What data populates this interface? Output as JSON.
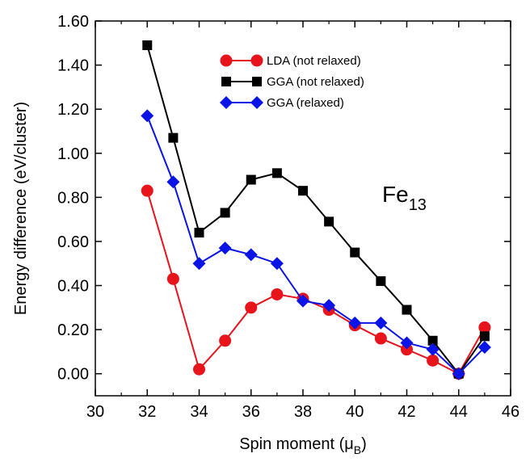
{
  "chart_data": {
    "type": "line",
    "xlabel": "Spin moment (",
    "xlabel_symbol": "μ",
    "xlabel_sub": "B",
    "xlabel_close": ")",
    "ylabel": "Energy difference (eV/cluster)",
    "xlim": [
      30,
      46
    ],
    "ylim": [
      -0.1,
      1.6
    ],
    "xticks": [
      30,
      32,
      34,
      36,
      38,
      40,
      42,
      44,
      46
    ],
    "yticks": [
      0.0,
      0.2,
      0.4,
      0.6,
      0.8,
      1.0,
      1.2,
      1.4,
      1.6
    ],
    "ytick_labels": [
      "0.00",
      "0.20",
      "0.40",
      "0.60",
      "0.80",
      "1.00",
      "1.20",
      "1.40",
      "1.60"
    ],
    "legend_position": "top-center",
    "annotation": {
      "text": "Fe",
      "sub": "13"
    },
    "series": [
      {
        "name": "LDA (not relaxed)",
        "color": "#e8141b",
        "marker": "circle",
        "x": [
          32,
          33,
          34,
          35,
          36,
          37,
          38,
          39,
          40,
          41,
          42,
          43,
          44,
          45
        ],
        "y": [
          0.83,
          0.43,
          0.02,
          0.15,
          0.3,
          0.36,
          0.34,
          0.29,
          0.22,
          0.16,
          0.11,
          0.06,
          0.0,
          0.21
        ]
      },
      {
        "name": "GGA (not relaxed)",
        "color": "#000000",
        "marker": "square",
        "x": [
          32,
          33,
          34,
          35,
          36,
          37,
          38,
          39,
          40,
          41,
          42,
          43,
          44,
          45
        ],
        "y": [
          1.49,
          1.07,
          0.64,
          0.73,
          0.88,
          0.91,
          0.83,
          0.69,
          0.55,
          0.42,
          0.29,
          0.15,
          0.0,
          0.17
        ]
      },
      {
        "name": "GGA (relaxed)",
        "color": "#0a14e6",
        "marker": "diamond",
        "x": [
          32,
          33,
          34,
          35,
          36,
          37,
          38,
          39,
          40,
          41,
          42,
          43,
          44,
          45
        ],
        "y": [
          1.17,
          0.87,
          0.5,
          0.57,
          0.54,
          0.5,
          0.33,
          0.31,
          0.23,
          0.23,
          0.14,
          0.11,
          0.0,
          0.12
        ]
      }
    ]
  }
}
